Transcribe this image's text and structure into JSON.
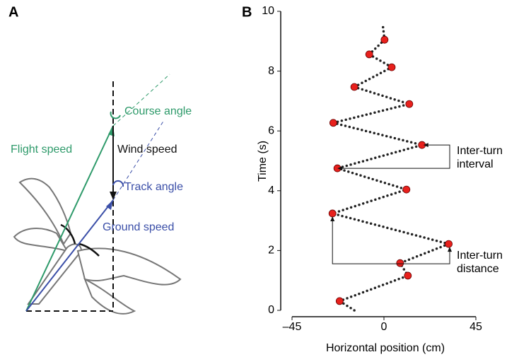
{
  "panels": [
    "A",
    "B"
  ],
  "panel_a": {
    "course_angle": "Course angle",
    "flight_speed": "Flight speed",
    "wind_speed": "Wind speed",
    "track_angle": "Track angle",
    "ground_speed": "Ground speed"
  },
  "chart_data": {
    "type": "line",
    "xlabel": "Horizontal position (cm)",
    "ylabel": "Time (s)",
    "xlim": [
      -45,
      45
    ],
    "ylim": [
      0,
      10
    ],
    "xticks": [
      {
        "value": -45,
        "label": "–45"
      },
      0,
      45
    ],
    "yticks": [
      0,
      2,
      4,
      6,
      8,
      10
    ],
    "trajectory": {
      "color": "#222222",
      "x": [
        -14.5,
        -21.7,
        11.7,
        7.9,
        31.7,
        -25.2,
        11,
        -22.8,
        18.6,
        -24.8,
        12.4,
        -14.5,
        3.8,
        -7.2,
        0.3,
        -0.5
      ],
      "y": [
        0,
        0.31,
        1.16,
        1.58,
        2.22,
        3.24,
        4.04,
        4.75,
        5.53,
        6.27,
        6.9,
        7.47,
        8.13,
        8.56,
        9.05,
        9.5
      ]
    },
    "turns": {
      "color": "#e8201c",
      "x": [
        -21.7,
        11.7,
        7.9,
        31.7,
        -25.2,
        11,
        -22.8,
        18.6,
        -24.8,
        12.4,
        -14.5,
        3.8,
        -7.2,
        0.3
      ],
      "y": [
        0.31,
        1.16,
        1.58,
        2.22,
        3.24,
        4.04,
        4.75,
        5.53,
        6.27,
        6.9,
        7.47,
        8.13,
        8.56,
        9.05
      ]
    },
    "annotations": [
      [
        "Inter-turn",
        "interval"
      ],
      [
        "Inter-turn",
        "distance"
      ]
    ]
  }
}
